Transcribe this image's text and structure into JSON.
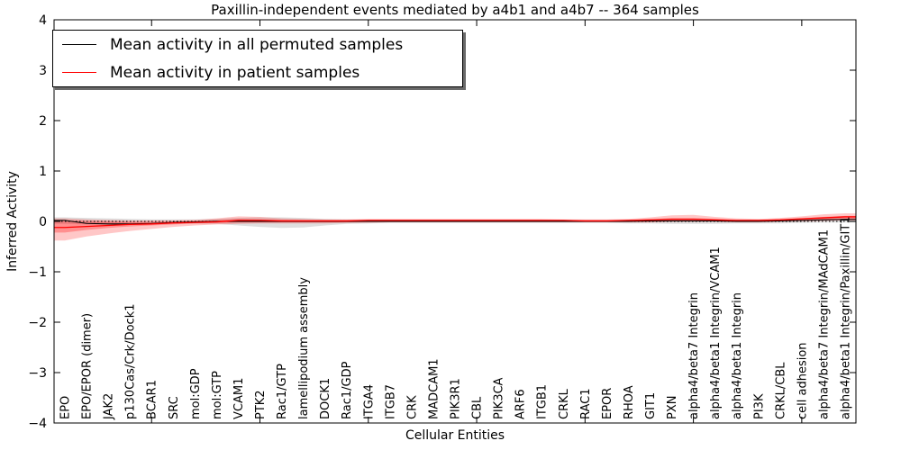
{
  "chart_data": {
    "type": "line",
    "title": "Paxillin-independent events mediated by a4b1 and a4b7 -- 364 samples",
    "xlabel": "Cellular Entities",
    "ylabel": "Inferred Activity",
    "ylim": [
      -4,
      4
    ],
    "yticks": [
      -4,
      -3,
      -2,
      -1,
      0,
      1,
      2,
      3,
      4
    ],
    "ytick_labels": [
      "−4",
      "−3",
      "−2",
      "−1",
      "0",
      "1",
      "2",
      "3",
      "4"
    ],
    "xtick_indices": [
      4,
      9,
      14,
      19,
      24,
      29,
      34
    ],
    "grid": false,
    "zero_line": {
      "value": 0,
      "style": "dotted",
      "color": "#000000"
    },
    "legend_position": "upper left",
    "legend": [
      {
        "label": "Mean activity in all permuted samples",
        "color": "#000000"
      },
      {
        "label": "Mean activity in patient samples",
        "color": "#ff0000"
      }
    ],
    "colors": {
      "permuted_line": "#000000",
      "patient_line": "#ff0000",
      "permuted_band": "#aaaaaa",
      "patient_band": "#ff0000",
      "frame": "#000000"
    },
    "categories": [
      "EPO",
      "EPO/EPOR (dimer)",
      "JAK2",
      "p130Cas/Crk/Dock1",
      "BCAR1",
      "SRC",
      "mol:GDP",
      "mol:GTP",
      "VCAM1",
      "PTK2",
      "Rac1/GTP",
      "lamellipodium assembly",
      "DOCK1",
      "Rac1/GDP",
      "ITGA4",
      "ITGB7",
      "CRK",
      "MADCAM1",
      "PIK3R1",
      "CBL",
      "PIK3CA",
      "ARF6",
      "ITGB1",
      "CRKL",
      "RAC1",
      "EPOR",
      "RHOA",
      "GIT1",
      "PXN",
      "alpha4/beta7 Integrin",
      "alpha4/beta1 Integrin/VCAM1",
      "alpha4/beta1 Integrin",
      "PI3K",
      "CRKL/CBL",
      "cell adhesion",
      "alpha4/beta7 Integrin/MAdCAM1",
      "alpha4/beta1 Integrin/Paxillin/GIT1"
    ],
    "series": [
      {
        "name": "Mean activity in all permuted samples",
        "values": [
          0.02,
          -0.04,
          -0.05,
          -0.05,
          -0.04,
          -0.02,
          -0.01,
          0,
          0,
          0,
          0,
          0,
          0,
          0,
          0,
          0,
          0,
          0,
          0,
          0,
          0,
          0,
          0,
          0,
          0,
          0,
          0,
          0.01,
          0.01,
          0.01,
          0.01,
          0,
          0,
          0.01,
          0.02,
          0.03,
          0.04
        ]
      },
      {
        "name": "Mean activity in patient samples",
        "values": [
          -0.12,
          -0.1,
          -0.08,
          -0.06,
          -0.05,
          -0.03,
          -0.02,
          -0.01,
          0.02,
          0.02,
          0.01,
          0.01,
          0.01,
          0.01,
          0.02,
          0.02,
          0.02,
          0.02,
          0.02,
          0.02,
          0.02,
          0.02,
          0.02,
          0.02,
          0.01,
          0.01,
          0.02,
          0.03,
          0.04,
          0.04,
          0.03,
          0.02,
          0.02,
          0.03,
          0.05,
          0.07,
          0.09
        ]
      }
    ],
    "bands": {
      "permuted": {
        "lo": [
          -0.05,
          -0.06,
          -0.06,
          -0.05,
          -0.05,
          -0.04,
          -0.04,
          -0.05,
          -0.08,
          -0.11,
          -0.13,
          -0.12,
          -0.08,
          -0.05,
          -0.04,
          -0.03,
          -0.03,
          -0.03,
          -0.03,
          -0.03,
          -0.03,
          -0.03,
          -0.03,
          -0.03,
          -0.03,
          -0.03,
          -0.04,
          -0.04,
          -0.05,
          -0.05,
          -0.05,
          -0.04,
          -0.04,
          -0.04,
          -0.03,
          -0.02,
          -0.02
        ],
        "hi": [
          0.08,
          0.07,
          0.06,
          0.05,
          0.04,
          0.04,
          0.04,
          0.05,
          0.07,
          0.08,
          0.08,
          0.07,
          0.05,
          0.04,
          0.03,
          0.03,
          0.03,
          0.03,
          0.03,
          0.03,
          0.03,
          0.03,
          0.03,
          0.03,
          0.03,
          0.03,
          0.03,
          0.03,
          0.03,
          0.03,
          0.03,
          0.03,
          0.03,
          0.03,
          0.04,
          0.05,
          0.06
        ]
      },
      "patient_outer": {
        "lo": [
          -0.38,
          -0.3,
          -0.24,
          -0.19,
          -0.15,
          -0.11,
          -0.08,
          -0.06,
          -0.05,
          -0.04,
          -0.04,
          -0.04,
          -0.04,
          -0.03,
          -0.03,
          -0.02,
          -0.02,
          -0.02,
          -0.02,
          -0.02,
          -0.02,
          -0.02,
          -0.02,
          -0.02,
          -0.02,
          -0.02,
          -0.02,
          -0.02,
          -0.01,
          -0.01,
          -0.01,
          -0.02,
          -0.02,
          -0.01,
          0.0,
          0.01,
          0.02
        ],
        "hi": [
          0.06,
          0.04,
          0.03,
          0.02,
          0.02,
          0.02,
          0.03,
          0.06,
          0.1,
          0.09,
          0.06,
          0.05,
          0.04,
          0.04,
          0.05,
          0.05,
          0.05,
          0.05,
          0.05,
          0.05,
          0.05,
          0.05,
          0.05,
          0.04,
          0.04,
          0.04,
          0.05,
          0.08,
          0.12,
          0.13,
          0.09,
          0.06,
          0.05,
          0.07,
          0.1,
          0.14,
          0.16
        ]
      },
      "patient_inner": {
        "lo": [
          -0.22,
          -0.17,
          -0.13,
          -0.1,
          -0.08,
          -0.06,
          -0.04,
          -0.03,
          -0.02,
          -0.02,
          -0.02,
          -0.02,
          -0.02,
          -0.02,
          -0.01,
          -0.01,
          -0.01,
          -0.01,
          -0.01,
          -0.01,
          -0.01,
          -0.01,
          -0.01,
          -0.01,
          -0.01,
          -0.01,
          -0.01,
          -0.01,
          0.0,
          0.0,
          0.0,
          -0.01,
          -0.01,
          0.0,
          0.01,
          0.02,
          0.03
        ],
        "hi": [
          0.02,
          0.01,
          0.0,
          -0.01,
          -0.01,
          0.0,
          0.01,
          0.03,
          0.05,
          0.04,
          0.03,
          0.02,
          0.02,
          0.02,
          0.03,
          0.03,
          0.03,
          0.03,
          0.03,
          0.03,
          0.03,
          0.03,
          0.03,
          0.03,
          0.02,
          0.02,
          0.03,
          0.04,
          0.07,
          0.07,
          0.05,
          0.03,
          0.03,
          0.04,
          0.06,
          0.09,
          0.11
        ]
      }
    }
  }
}
